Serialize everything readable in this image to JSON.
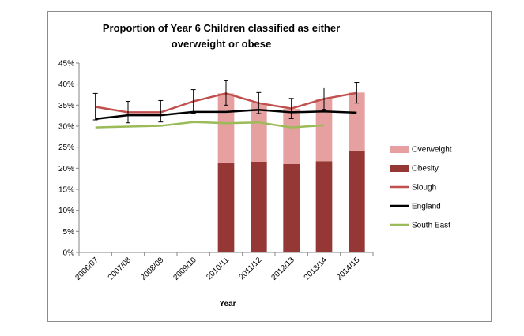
{
  "chart_data": {
    "type": "bar",
    "title": "Proportion of Year 6 Children classified as either overweight or obese",
    "xlabel": "Year",
    "ylabel": "",
    "ylim": [
      0,
      45
    ],
    "y_ticks": [
      "0%",
      "5%",
      "10%",
      "15%",
      "20%",
      "25%",
      "30%",
      "35%",
      "40%",
      "45%"
    ],
    "y_tick_values": [
      0,
      5,
      10,
      15,
      20,
      25,
      30,
      35,
      40,
      45
    ],
    "categories": [
      "2006/07",
      "2007/08",
      "2008/09",
      "2009/10",
      "2010/11",
      "2011/12",
      "2012/13",
      "2013/14",
      "2014/15"
    ],
    "grid": false,
    "legend_position": "right",
    "stacked_bars": [
      {
        "name": "Overweight",
        "color": "#e6a0a0",
        "values": [
          null,
          null,
          null,
          null,
          16.6,
          14.1,
          13.1,
          14.7,
          13.8
        ]
      },
      {
        "name": "Obesity",
        "color": "#953735",
        "values": [
          null,
          null,
          null,
          null,
          21.2,
          21.5,
          21.0,
          21.7,
          24.2
        ]
      }
    ],
    "lines": [
      {
        "name": "Slough",
        "color": "#c0504d",
        "values": [
          34.6,
          33.3,
          33.3,
          35.9,
          37.8,
          35.5,
          34.2,
          36.5,
          37.9
        ],
        "error_low": [
          31.5,
          30.8,
          31.0,
          33.1,
          35.0,
          33.0,
          31.8,
          34.0,
          35.5
        ],
        "error_high": [
          37.8,
          35.9,
          36.1,
          38.7,
          40.8,
          38.0,
          36.6,
          39.1,
          40.4
        ]
      },
      {
        "name": "England",
        "color": "#000000",
        "values": [
          31.7,
          32.6,
          32.6,
          33.4,
          33.4,
          33.9,
          33.3,
          33.5,
          33.2
        ]
      },
      {
        "name": "South East",
        "color": "#9bbb59",
        "values": [
          29.7,
          29.9,
          30.1,
          31.0,
          30.7,
          30.9,
          29.7,
          30.2,
          null
        ]
      }
    ]
  }
}
